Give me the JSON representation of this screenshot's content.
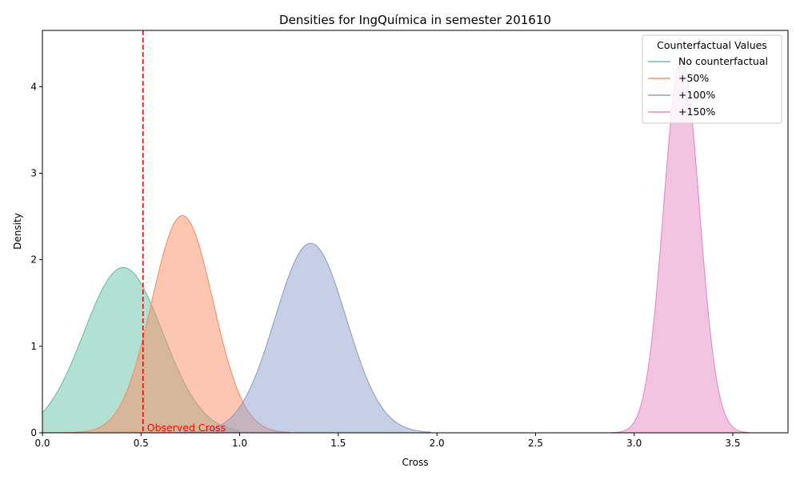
{
  "chart_data": {
    "type": "area",
    "title": "Densities for IngQuímica in semester 201610",
    "xlabel": "Cross",
    "ylabel": "Density",
    "xlim": [
      0.0,
      3.78
    ],
    "ylim": [
      0,
      4.65
    ],
    "xticks": [
      "0.0",
      "0.5",
      "1.0",
      "1.5",
      "2.0",
      "2.5",
      "3.0",
      "3.5"
    ],
    "yticks": [
      "0",
      "1",
      "2",
      "3",
      "4"
    ],
    "grid": false,
    "legend": {
      "title": "Counterfactual Values",
      "placement": "top-right"
    },
    "series": [
      {
        "name": "No counterfactual",
        "color": "#66c2a5",
        "peak_x": 0.41,
        "peak_y": 1.91,
        "sd": 0.2,
        "x_range": [
          0.0,
          1.0
        ]
      },
      {
        "name": "+50%",
        "color": "#fc8d62",
        "peak_x": 0.71,
        "peak_y": 2.51,
        "sd": 0.155,
        "x_range": [
          0.0,
          1.25
        ]
      },
      {
        "name": "+100%",
        "color": "#8da0cb",
        "peak_x": 1.36,
        "peak_y": 2.19,
        "sd": 0.18,
        "x_range": [
          0.58,
          1.97
        ]
      },
      {
        "name": "+150%",
        "color": "#e78ac3",
        "peak_x": 3.24,
        "peak_y": 4.33,
        "sd": 0.09,
        "x_range": [
          2.88,
          3.58
        ]
      }
    ],
    "annotations": [
      {
        "text": "Observed Cross",
        "x": 0.51,
        "color": "#ff0000",
        "line_style": "dashed"
      }
    ]
  }
}
